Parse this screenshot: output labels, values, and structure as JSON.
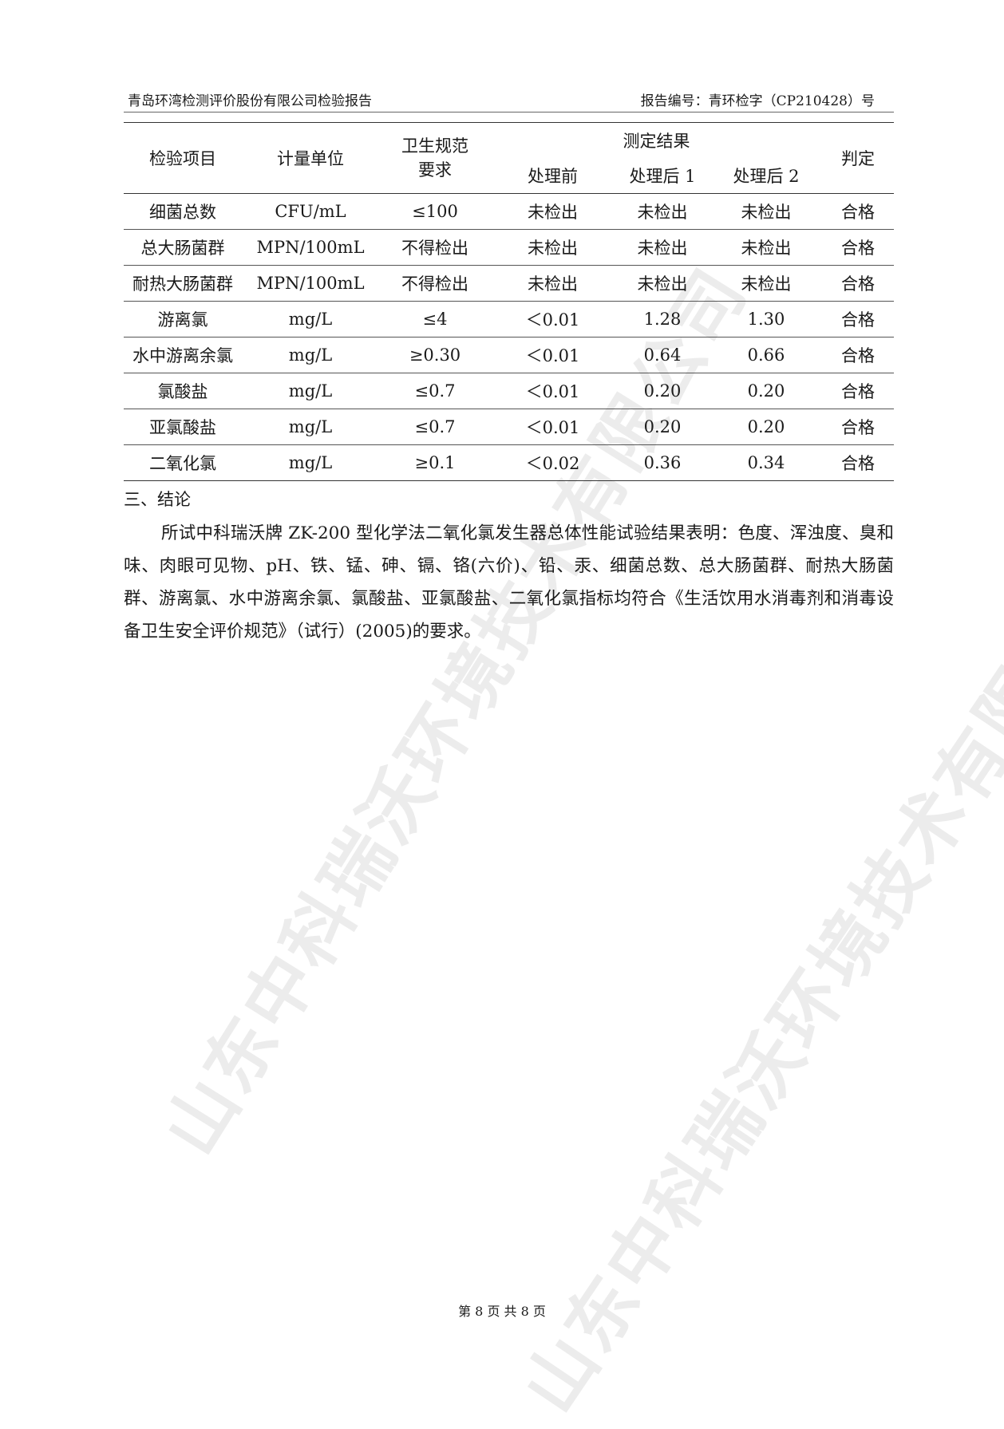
{
  "header": {
    "company": "青岛环湾检测评价股份有限公司检验报告",
    "report_no": "报告编号：青环检字（CP210428）号"
  },
  "watermark": "山东中科瑞沃环境技术有限公司",
  "table": {
    "headers": {
      "item": "检验项目",
      "unit": "计量单位",
      "standard": "卫生规范要求",
      "result_group": "测定结果",
      "before": "处理前",
      "after1": "处理后 1",
      "after2": "处理后 2",
      "verdict": "判定"
    },
    "rows": [
      [
        "细菌总数",
        "CFU/mL",
        "≤100",
        "未检出",
        "未检出",
        "未检出",
        "合格"
      ],
      [
        "总大肠菌群",
        "MPN/100mL",
        "不得检出",
        "未检出",
        "未检出",
        "未检出",
        "合格"
      ],
      [
        "耐热大肠菌群",
        "MPN/100mL",
        "不得检出",
        "未检出",
        "未检出",
        "未检出",
        "合格"
      ],
      [
        "游离氯",
        "mg/L",
        "≤4",
        "＜0.01",
        "1.28",
        "1.30",
        "合格"
      ],
      [
        "水中游离余氯",
        "mg/L",
        "≥0.30",
        "＜0.01",
        "0.64",
        "0.66",
        "合格"
      ],
      [
        "氯酸盐",
        "mg/L",
        "≤0.7",
        "＜0.01",
        "0.20",
        "0.20",
        "合格"
      ],
      [
        "亚氯酸盐",
        "mg/L",
        "≤0.7",
        "＜0.01",
        "0.20",
        "0.20",
        "合格"
      ],
      [
        "二氧化氯",
        "mg/L",
        "≥0.1",
        "＜0.02",
        "0.36",
        "0.34",
        "合格"
      ]
    ]
  },
  "conclusion": {
    "title": "三、结论",
    "text": "所试中科瑞沃牌 ZK-200 型化学法二氧化氯发生器总体性能试验结果表明：色度、浑浊度、臭和味、肉眼可见物、pH、铁、锰、砷、镉、铬(六价)、铅、汞、细菌总数、总大肠菌群、耐热大肠菌群、游离氯、水中游离余氯、氯酸盐、亚氯酸盐、二氧化氯指标均符合《生活饮用水消毒剂和消毒设备卫生安全评价规范》（试行）(2005)的要求。"
  },
  "footer": "第 8 页 共 8 页"
}
